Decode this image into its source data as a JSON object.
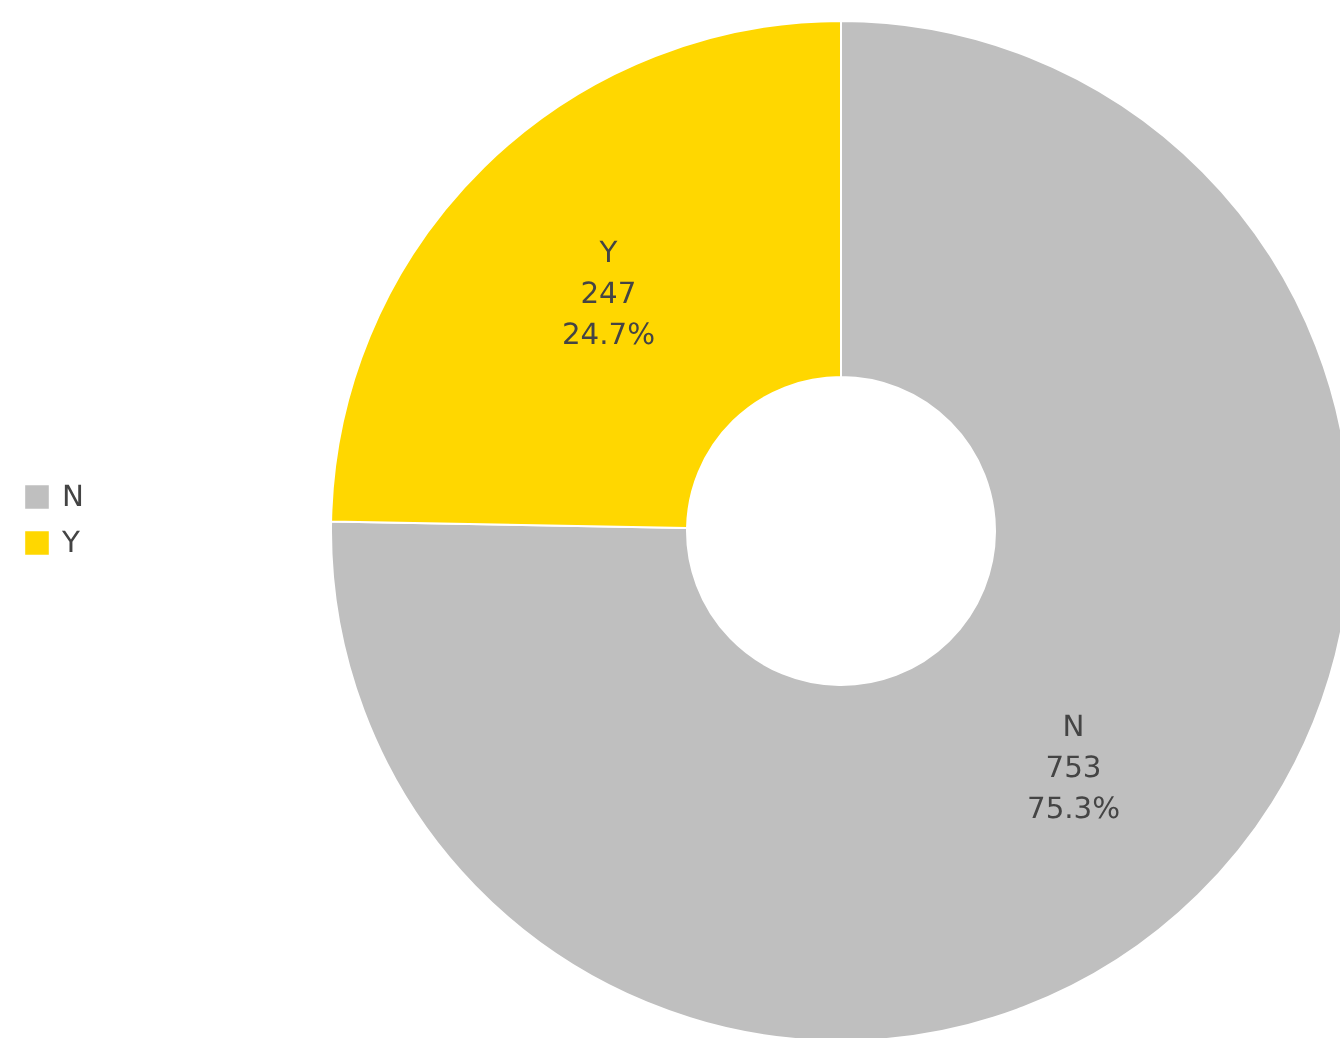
{
  "chart_data": {
    "type": "donut",
    "categories": [
      "N",
      "Y"
    ],
    "values": [
      753,
      247
    ],
    "colors": [
      "#bfbfbf",
      "#ffd700"
    ],
    "value_labels": [
      "753\n75.3%",
      "247\n24.7%"
    ],
    "legend": "left"
  }
}
